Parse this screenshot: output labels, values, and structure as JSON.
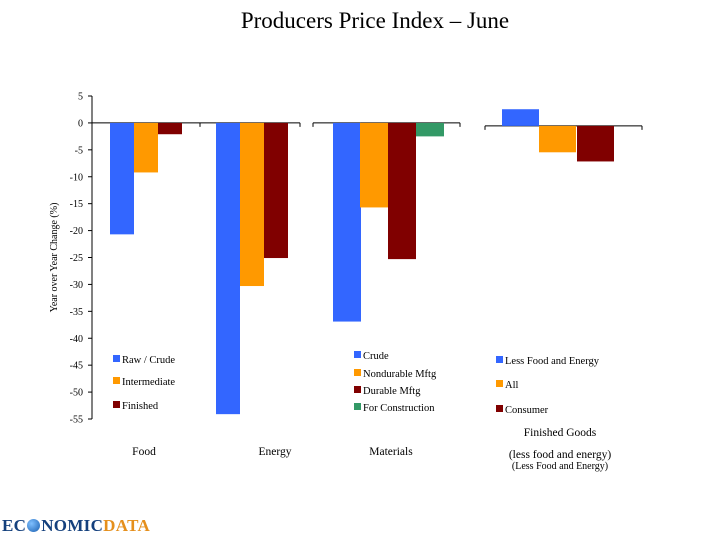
{
  "title": "Producers Price Index – June",
  "logo": {
    "part1a": "EC",
    "part1b": "NOMIC",
    "part2": "DATA",
    "globe_icon": "globe-icon"
  },
  "colors": {
    "blue": "#3366ff",
    "orange": "#ff9900",
    "darkred": "#800000",
    "green": "#339966"
  },
  "chart_data": {
    "type": "bar",
    "ylabel": "Year over Year Change (%)",
    "ylim": [
      -55,
      5
    ],
    "yticks": [
      5,
      0,
      -5,
      -10,
      -15,
      -20,
      -25,
      -30,
      -35,
      -40,
      -45,
      -50,
      -55
    ],
    "grid": false,
    "panels": [
      {
        "category": "Food",
        "series": [
          {
            "name": "Raw / Crude",
            "value": -20.7,
            "color": "#3366ff"
          },
          {
            "name": "Intermediate",
            "value": -9.2,
            "color": "#ff9900"
          },
          {
            "name": "Finished",
            "value": -2.1,
            "color": "#800000"
          }
        ]
      },
      {
        "category": "Energy",
        "series": [
          {
            "name": "",
            "value": -54.1,
            "color": "#3366ff"
          },
          {
            "name": "",
            "value": -30.3,
            "color": "#ff9900"
          },
          {
            "name": "",
            "value": -25.1,
            "color": "#800000"
          }
        ]
      },
      {
        "category": "Materials",
        "series": [
          {
            "name": "Crude",
            "value": -36.9,
            "color": "#3366ff"
          },
          {
            "name": "Nondurable Mftg",
            "value": -15.7,
            "color": "#ff9900"
          },
          {
            "name": "Durable Mftg",
            "value": -25.3,
            "color": "#800000"
          },
          {
            "name": "For Construction",
            "value": -2.5,
            "color": "#339966"
          }
        ]
      },
      {
        "category": "Finished Goods",
        "category_line2": "(less food and energy)",
        "category_line3": "(Less Food and Energy)",
        "series": [
          {
            "name": "Less Food and Energy",
            "value": 3.1,
            "color": "#3366ff"
          },
          {
            "name": "All",
            "value": -4.9,
            "color": "#ff9900"
          },
          {
            "name": "Consumer",
            "value": -6.6,
            "color": "#800000"
          }
        ]
      }
    ]
  }
}
